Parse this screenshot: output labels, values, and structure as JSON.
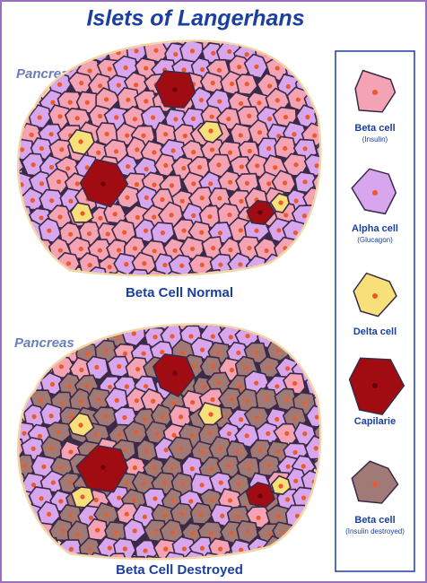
{
  "title": "Islets of Langerhans",
  "panels": [
    {
      "label": "Pancreas",
      "caption": "Beta Cell Normal"
    },
    {
      "label": "Pancreas",
      "caption": "Beta Cell Destroyed"
    }
  ],
  "legend": [
    {
      "name": "Beta cell",
      "note": "(Insulin)"
    },
    {
      "name": "Alpha cell",
      "note": "(Glucagon)"
    },
    {
      "name": "Delta cell"
    },
    {
      "name": "Capilarie"
    },
    {
      "name": "Beta cell",
      "note": "(Insulin destroyed)"
    }
  ]
}
